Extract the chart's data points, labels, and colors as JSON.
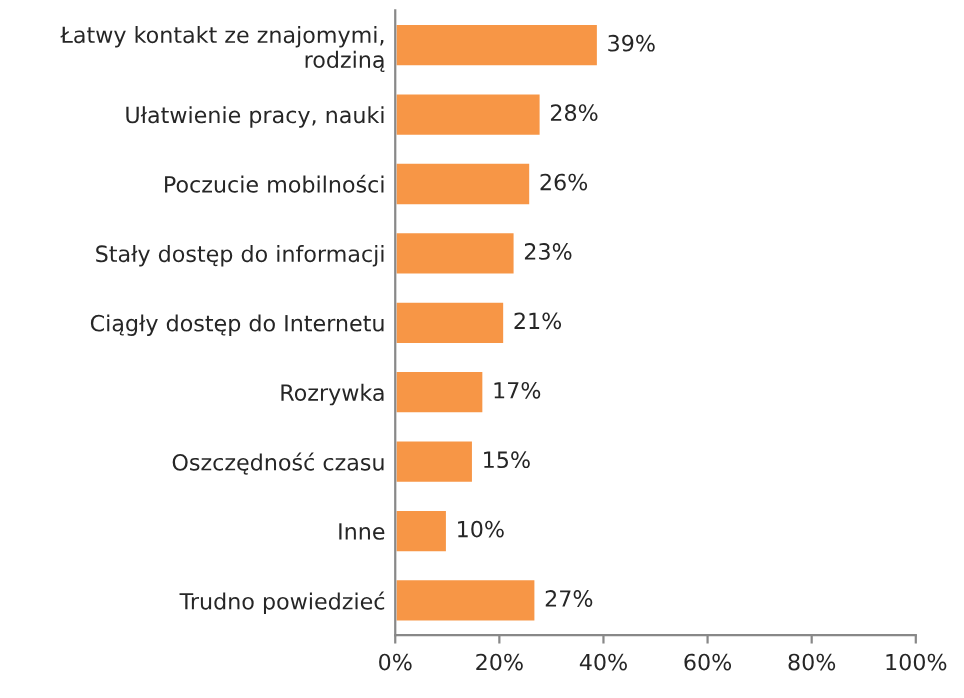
{
  "chart_data": {
    "type": "bar",
    "orientation": "horizontal",
    "categories": [
      "Łatwy kontakt ze znajomymi,\nrodziną",
      "Ułatwienie pracy, nauki",
      "Poczucie mobilności",
      "Stały dostęp do informacji",
      "Ciągły dostęp do Internetu",
      "Rozrywka",
      "Oszczędność czasu",
      "Inne",
      "Trudno powiedzieć"
    ],
    "values": [
      39,
      28,
      26,
      23,
      21,
      17,
      15,
      10,
      27
    ],
    "value_labels": [
      "39%",
      "28%",
      "26%",
      "23%",
      "21%",
      "17%",
      "15%",
      "10%",
      "27%"
    ],
    "color": "#f79646",
    "xlim": [
      0,
      100
    ],
    "xticks": [
      {
        "value": 0,
        "label": "0%"
      },
      {
        "value": 20,
        "label": "20%"
      },
      {
        "value": 40,
        "label": "40%"
      },
      {
        "value": 60,
        "label": "60%"
      },
      {
        "value": 80,
        "label": "80%"
      },
      {
        "value": 100,
        "label": "100%"
      }
    ],
    "grid": false,
    "legend": false
  }
}
